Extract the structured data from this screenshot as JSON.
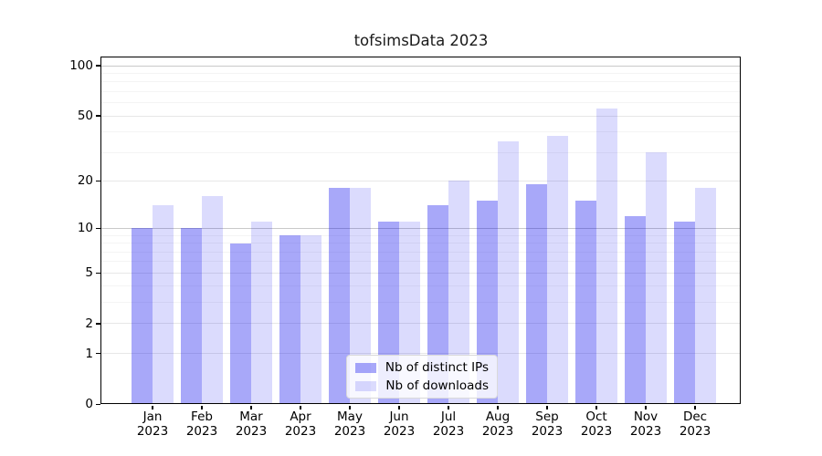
{
  "title": "tofsimsData 2023",
  "chart_data": {
    "type": "bar",
    "title": "tofsimsData 2023",
    "categories": [
      "Jan 2023",
      "Feb 2023",
      "Mar 2023",
      "Apr 2023",
      "May 2023",
      "Jun 2023",
      "Jul 2023",
      "Aug 2023",
      "Sep 2023",
      "Oct 2023",
      "Nov 2023",
      "Dec 2023"
    ],
    "series": [
      {
        "name": "Nb of distinct IPs",
        "color": "rgba(0,0,238,0.34)",
        "swatch_hex": "#a8a8f5",
        "values": [
          10,
          10,
          8,
          9,
          18,
          11,
          14,
          15,
          19,
          15,
          12,
          11
        ]
      },
      {
        "name": "Nb of downloads",
        "color": "rgba(0,0,238,0.14)",
        "swatch_hex": "#dcdcfa",
        "values": [
          14,
          16,
          11,
          9,
          18,
          11,
          20,
          35,
          38,
          55,
          30,
          18
        ]
      }
    ],
    "xlabel": "",
    "ylabel": "",
    "yscale": "log10(1+y)",
    "ylim": [
      0,
      113
    ],
    "y_major_ticks": [
      0,
      1,
      2,
      5,
      10,
      20,
      50,
      100
    ],
    "y_minor_ticks": [
      3,
      4,
      6,
      7,
      8,
      9,
      30,
      40,
      60,
      70,
      80,
      90
    ],
    "y_strong_gridlines": [
      10,
      100
    ],
    "grid": true,
    "legend_position": "lower center"
  }
}
